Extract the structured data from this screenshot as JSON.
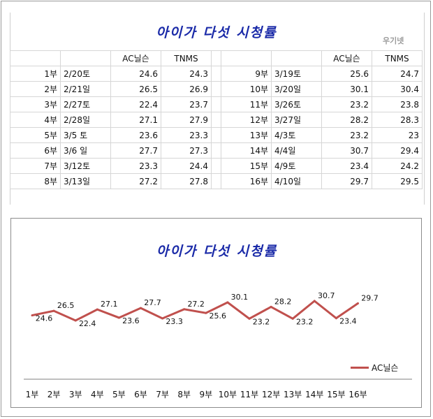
{
  "title": "아이가 다섯 시청률",
  "watermark": "우기넷",
  "table": {
    "headers": [
      "",
      "",
      "AC닐슨",
      "TNMS"
    ],
    "left_rows": [
      [
        "1부",
        "2/20토",
        "24.6",
        "24.3"
      ],
      [
        "2부",
        "2/21일",
        "26.5",
        "26.9"
      ],
      [
        "3부",
        "2/27토",
        "22.4",
        "23.7"
      ],
      [
        "4부",
        "2/28일",
        "27.1",
        "27.9"
      ],
      [
        "5부",
        "3/5 토",
        "23.6",
        "23.3"
      ],
      [
        "6부",
        "3/6 일",
        "27.7",
        "27.3"
      ],
      [
        "7부",
        "3/12토",
        "23.3",
        "24.4"
      ],
      [
        "8부",
        "3/13일",
        "27.2",
        "27.8"
      ]
    ],
    "right_rows": [
      [
        "9부",
        "3/19토",
        "25.6",
        "24.7"
      ],
      [
        "10부",
        "3/20일",
        "30.1",
        "30.4"
      ],
      [
        "11부",
        "3/26토",
        "23.2",
        "23.8"
      ],
      [
        "12부",
        "3/27일",
        "28.2",
        "28.3"
      ],
      [
        "13부",
        "4/3토",
        "23.2",
        "23"
      ],
      [
        "14부",
        "4/4일",
        "30.7",
        "29.4"
      ],
      [
        "15부",
        "4/9토",
        "23.4",
        "24.2"
      ],
      [
        "16부",
        "4/10일",
        "29.7",
        "29.5"
      ]
    ]
  },
  "chart_data": {
    "type": "line",
    "title": "아이가 다섯 시청률",
    "categories": [
      "1부",
      "2부",
      "3부",
      "4부",
      "5부",
      "6부",
      "7부",
      "8부",
      "9부",
      "10부",
      "11부",
      "12부",
      "13부",
      "14부",
      "15부",
      "16부"
    ],
    "series": [
      {
        "name": "AC닐슨",
        "values": [
          24.6,
          26.5,
          22.4,
          27.1,
          23.6,
          27.7,
          23.3,
          27.2,
          25.6,
          30.1,
          23.2,
          28.2,
          23.2,
          30.7,
          23.4,
          29.7
        ]
      }
    ],
    "data_labels": [
      "24.6",
      "26.5",
      "22.4",
      "27.1",
      "23.6",
      "27.7",
      "23.3",
      "27.2",
      "25.6",
      "30.1",
      "23.2",
      "28.2",
      "23.2",
      "30.7",
      "23.4",
      "29.7"
    ],
    "line_color": "#c0504d",
    "ylim": [
      0,
      32
    ],
    "legend": "bottom-right",
    "grid": false
  }
}
